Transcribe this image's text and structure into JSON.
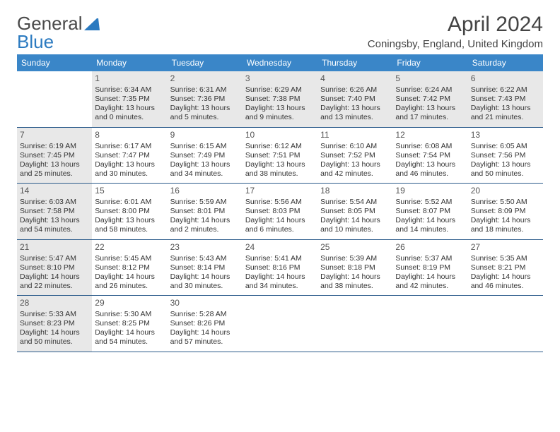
{
  "logo": {
    "text1": "General",
    "text2": "Blue"
  },
  "title": "April 2024",
  "location": "Coningsby, England, United Kingdom",
  "colors": {
    "header_bg": "#3a86c8",
    "header_text": "#ffffff",
    "border": "#2a5a8a",
    "shade_bg": "#e8e8e8",
    "text": "#333333",
    "title_text": "#444444",
    "logo_gray": "#4a4a4a",
    "logo_blue": "#2b7ac0"
  },
  "day_names": [
    "Sunday",
    "Monday",
    "Tuesday",
    "Wednesday",
    "Thursday",
    "Friday",
    "Saturday"
  ],
  "weeks": [
    [
      {
        "empty": true
      },
      {
        "num": "1",
        "shade": true,
        "sunrise": "Sunrise: 6:34 AM",
        "sunset": "Sunset: 7:35 PM",
        "daylight": "Daylight: 13 hours and 0 minutes."
      },
      {
        "num": "2",
        "shade": true,
        "sunrise": "Sunrise: 6:31 AM",
        "sunset": "Sunset: 7:36 PM",
        "daylight": "Daylight: 13 hours and 5 minutes."
      },
      {
        "num": "3",
        "shade": true,
        "sunrise": "Sunrise: 6:29 AM",
        "sunset": "Sunset: 7:38 PM",
        "daylight": "Daylight: 13 hours and 9 minutes."
      },
      {
        "num": "4",
        "shade": true,
        "sunrise": "Sunrise: 6:26 AM",
        "sunset": "Sunset: 7:40 PM",
        "daylight": "Daylight: 13 hours and 13 minutes."
      },
      {
        "num": "5",
        "shade": true,
        "sunrise": "Sunrise: 6:24 AM",
        "sunset": "Sunset: 7:42 PM",
        "daylight": "Daylight: 13 hours and 17 minutes."
      },
      {
        "num": "6",
        "shade": true,
        "sunrise": "Sunrise: 6:22 AM",
        "sunset": "Sunset: 7:43 PM",
        "daylight": "Daylight: 13 hours and 21 minutes."
      }
    ],
    [
      {
        "num": "7",
        "shade": true,
        "sunrise": "Sunrise: 6:19 AM",
        "sunset": "Sunset: 7:45 PM",
        "daylight": "Daylight: 13 hours and 25 minutes."
      },
      {
        "num": "8",
        "sunrise": "Sunrise: 6:17 AM",
        "sunset": "Sunset: 7:47 PM",
        "daylight": "Daylight: 13 hours and 30 minutes."
      },
      {
        "num": "9",
        "sunrise": "Sunrise: 6:15 AM",
        "sunset": "Sunset: 7:49 PM",
        "daylight": "Daylight: 13 hours and 34 minutes."
      },
      {
        "num": "10",
        "sunrise": "Sunrise: 6:12 AM",
        "sunset": "Sunset: 7:51 PM",
        "daylight": "Daylight: 13 hours and 38 minutes."
      },
      {
        "num": "11",
        "sunrise": "Sunrise: 6:10 AM",
        "sunset": "Sunset: 7:52 PM",
        "daylight": "Daylight: 13 hours and 42 minutes."
      },
      {
        "num": "12",
        "sunrise": "Sunrise: 6:08 AM",
        "sunset": "Sunset: 7:54 PM",
        "daylight": "Daylight: 13 hours and 46 minutes."
      },
      {
        "num": "13",
        "sunrise": "Sunrise: 6:05 AM",
        "sunset": "Sunset: 7:56 PM",
        "daylight": "Daylight: 13 hours and 50 minutes."
      }
    ],
    [
      {
        "num": "14",
        "shade": true,
        "sunrise": "Sunrise: 6:03 AM",
        "sunset": "Sunset: 7:58 PM",
        "daylight": "Daylight: 13 hours and 54 minutes."
      },
      {
        "num": "15",
        "sunrise": "Sunrise: 6:01 AM",
        "sunset": "Sunset: 8:00 PM",
        "daylight": "Daylight: 13 hours and 58 minutes."
      },
      {
        "num": "16",
        "sunrise": "Sunrise: 5:59 AM",
        "sunset": "Sunset: 8:01 PM",
        "daylight": "Daylight: 14 hours and 2 minutes."
      },
      {
        "num": "17",
        "sunrise": "Sunrise: 5:56 AM",
        "sunset": "Sunset: 8:03 PM",
        "daylight": "Daylight: 14 hours and 6 minutes."
      },
      {
        "num": "18",
        "sunrise": "Sunrise: 5:54 AM",
        "sunset": "Sunset: 8:05 PM",
        "daylight": "Daylight: 14 hours and 10 minutes."
      },
      {
        "num": "19",
        "sunrise": "Sunrise: 5:52 AM",
        "sunset": "Sunset: 8:07 PM",
        "daylight": "Daylight: 14 hours and 14 minutes."
      },
      {
        "num": "20",
        "sunrise": "Sunrise: 5:50 AM",
        "sunset": "Sunset: 8:09 PM",
        "daylight": "Daylight: 14 hours and 18 minutes."
      }
    ],
    [
      {
        "num": "21",
        "shade": true,
        "sunrise": "Sunrise: 5:47 AM",
        "sunset": "Sunset: 8:10 PM",
        "daylight": "Daylight: 14 hours and 22 minutes."
      },
      {
        "num": "22",
        "sunrise": "Sunrise: 5:45 AM",
        "sunset": "Sunset: 8:12 PM",
        "daylight": "Daylight: 14 hours and 26 minutes."
      },
      {
        "num": "23",
        "sunrise": "Sunrise: 5:43 AM",
        "sunset": "Sunset: 8:14 PM",
        "daylight": "Daylight: 14 hours and 30 minutes."
      },
      {
        "num": "24",
        "sunrise": "Sunrise: 5:41 AM",
        "sunset": "Sunset: 8:16 PM",
        "daylight": "Daylight: 14 hours and 34 minutes."
      },
      {
        "num": "25",
        "sunrise": "Sunrise: 5:39 AM",
        "sunset": "Sunset: 8:18 PM",
        "daylight": "Daylight: 14 hours and 38 minutes."
      },
      {
        "num": "26",
        "sunrise": "Sunrise: 5:37 AM",
        "sunset": "Sunset: 8:19 PM",
        "daylight": "Daylight: 14 hours and 42 minutes."
      },
      {
        "num": "27",
        "sunrise": "Sunrise: 5:35 AM",
        "sunset": "Sunset: 8:21 PM",
        "daylight": "Daylight: 14 hours and 46 minutes."
      }
    ],
    [
      {
        "num": "28",
        "shade": true,
        "sunrise": "Sunrise: 5:33 AM",
        "sunset": "Sunset: 8:23 PM",
        "daylight": "Daylight: 14 hours and 50 minutes."
      },
      {
        "num": "29",
        "sunrise": "Sunrise: 5:30 AM",
        "sunset": "Sunset: 8:25 PM",
        "daylight": "Daylight: 14 hours and 54 minutes."
      },
      {
        "num": "30",
        "sunrise": "Sunrise: 5:28 AM",
        "sunset": "Sunset: 8:26 PM",
        "daylight": "Daylight: 14 hours and 57 minutes."
      },
      {
        "empty": true,
        "shade": true
      },
      {
        "empty": true,
        "shade": true
      },
      {
        "empty": true,
        "shade": true
      },
      {
        "empty": true,
        "shade": true
      }
    ]
  ]
}
